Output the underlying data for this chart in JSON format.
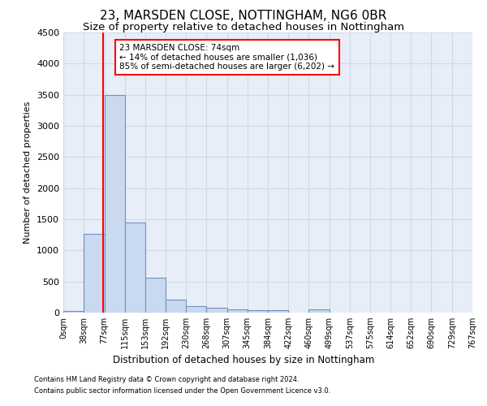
{
  "title1": "23, MARSDEN CLOSE, NOTTINGHAM, NG6 0BR",
  "title2": "Size of property relative to detached houses in Nottingham",
  "xlabel": "Distribution of detached houses by size in Nottingham",
  "ylabel": "Number of detached properties",
  "footnote1": "Contains HM Land Registry data © Crown copyright and database right 2024.",
  "footnote2": "Contains public sector information licensed under the Open Government Licence v3.0.",
  "annotation_line1": "23 MARSDEN CLOSE: 74sqm",
  "annotation_line2": "← 14% of detached houses are smaller (1,036)",
  "annotation_line3": "85% of semi-detached houses are larger (6,202) →",
  "bar_left_edges": [
    0,
    38,
    77,
    115,
    153,
    192,
    230,
    268,
    307,
    345,
    384,
    422,
    460,
    499,
    537,
    575,
    614,
    652,
    690,
    729
  ],
  "bar_widths": [
    38,
    39,
    38,
    38,
    39,
    38,
    38,
    39,
    38,
    39,
    38,
    38,
    39,
    38,
    38,
    39,
    38,
    38,
    39,
    38
  ],
  "bar_heights": [
    30,
    1260,
    3500,
    1450,
    560,
    210,
    110,
    80,
    55,
    40,
    35,
    0,
    50,
    0,
    0,
    0,
    0,
    0,
    0,
    0
  ],
  "bar_color": "#c9d9f0",
  "bar_edge_color": "#7090c0",
  "red_line_x": 74,
  "ylim": [
    0,
    4500
  ],
  "xlim": [
    0,
    767
  ],
  "yticks": [
    0,
    500,
    1000,
    1500,
    2000,
    2500,
    3000,
    3500,
    4000,
    4500
  ],
  "xtick_labels": [
    "0sqm",
    "38sqm",
    "77sqm",
    "115sqm",
    "153sqm",
    "192sqm",
    "230sqm",
    "268sqm",
    "307sqm",
    "345sqm",
    "384sqm",
    "422sqm",
    "460sqm",
    "499sqm",
    "537sqm",
    "575sqm",
    "614sqm",
    "652sqm",
    "690sqm",
    "729sqm",
    "767sqm"
  ],
  "xtick_positions": [
    0,
    38,
    77,
    115,
    153,
    192,
    230,
    268,
    307,
    345,
    384,
    422,
    460,
    499,
    537,
    575,
    614,
    652,
    690,
    729,
    767
  ],
  "grid_color": "#d0d8e8",
  "background_color": "#e8eef8",
  "title1_fontsize": 11,
  "title2_fontsize": 9.5
}
